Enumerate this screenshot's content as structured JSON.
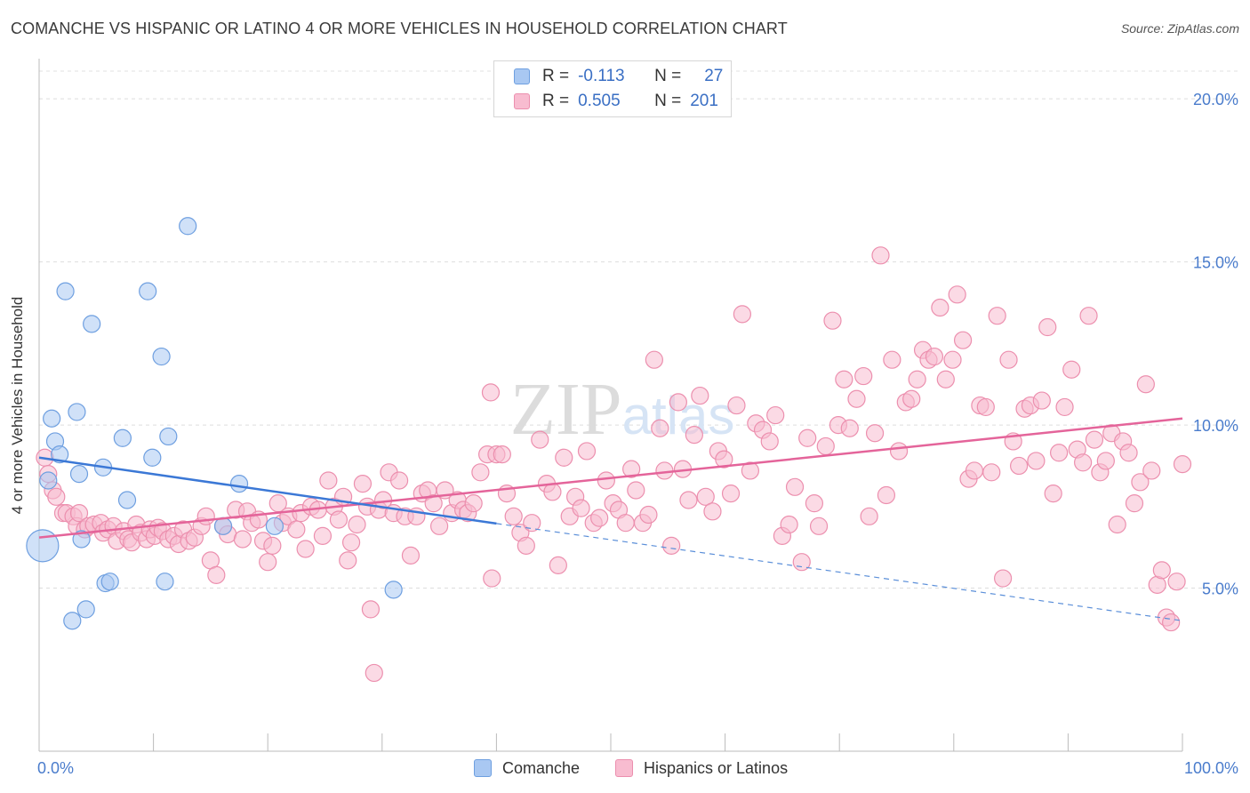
{
  "title": "COMANCHE VS HISPANIC OR LATINO 4 OR MORE VEHICLES IN HOUSEHOLD CORRELATION CHART",
  "source": "Source: ZipAtlas.com",
  "watermark": "ZIPatlas",
  "legend": {
    "rows": [
      {
        "r_label": "R =",
        "r_value": "-0.113",
        "n_label": "N =",
        "n_value": "27",
        "color": "#a9c8f2",
        "stroke": "#6e9fe0"
      },
      {
        "r_label": "R =",
        "r_value": "0.505",
        "n_label": "N =",
        "n_value": "201",
        "color": "#f8bcd0",
        "stroke": "#ec8fae"
      }
    ]
  },
  "bottom_legend": [
    {
      "label": "Comanche",
      "color": "#a9c8f2",
      "stroke": "#6e9fe0"
    },
    {
      "label": "Hispanics or Latinos",
      "color": "#f8bcd0",
      "stroke": "#ec8fae"
    }
  ],
  "chart_data": {
    "type": "scatter",
    "title": "COMANCHE VS HISPANIC OR LATINO 4 OR MORE VEHICLES IN HOUSEHOLD CORRELATION CHART",
    "xlabel": "",
    "ylabel": "4 or more Vehicles in Household",
    "xlim": [
      0,
      100
    ],
    "ylim": [
      0,
      20
    ],
    "x_tick_labels": [
      "0.0%",
      "100.0%"
    ],
    "y_ticks": [
      5,
      10,
      15,
      20
    ],
    "y_tick_labels": [
      "5.0%",
      "10.0%",
      "15.0%",
      "20.0%"
    ],
    "grid": true,
    "legend_position": "top-center",
    "series": [
      {
        "name": "Comanche",
        "color": "#a9c8f2",
        "stroke": "#6e9fe0",
        "trend": {
          "x": [
            0,
            40
          ],
          "y": [
            9.0,
            6.98
          ],
          "color": "#3b78d6"
        },
        "trend_extension": {
          "x": [
            40,
            100
          ],
          "y": [
            6.98,
            4.0
          ],
          "color": "#5b8fd9",
          "dashed": true
        },
        "points": [
          [
            0.3,
            6.3,
            "big"
          ],
          [
            0.8,
            8.3
          ],
          [
            1.1,
            10.2
          ],
          [
            1.4,
            9.5
          ],
          [
            1.8,
            9.1
          ],
          [
            2.3,
            14.1
          ],
          [
            2.9,
            4.0
          ],
          [
            3.3,
            10.4
          ],
          [
            3.5,
            8.5
          ],
          [
            3.7,
            6.5
          ],
          [
            4.1,
            4.35
          ],
          [
            4.6,
            13.1
          ],
          [
            5.6,
            8.7
          ],
          [
            5.8,
            5.15
          ],
          [
            6.2,
            5.2
          ],
          [
            7.3,
            9.6
          ],
          [
            7.7,
            7.7
          ],
          [
            9.5,
            14.1
          ],
          [
            9.9,
            9.0
          ],
          [
            10.7,
            12.1
          ],
          [
            11.0,
            5.2
          ],
          [
            11.3,
            9.65
          ],
          [
            13.0,
            16.1
          ],
          [
            16.1,
            6.9
          ],
          [
            17.5,
            8.2
          ],
          [
            20.6,
            6.9
          ],
          [
            31.0,
            4.95
          ]
        ]
      },
      {
        "name": "Hispanics or Latinos",
        "color": "#f8bcd0",
        "stroke": "#ec8fae",
        "trend": {
          "x": [
            0,
            100
          ],
          "y": [
            6.55,
            10.2
          ],
          "color": "#e4649a"
        },
        "points": [
          [
            0.5,
            9.0
          ],
          [
            0.8,
            8.5
          ],
          [
            1.2,
            8.0
          ],
          [
            1.5,
            7.8
          ],
          [
            2.1,
            7.3
          ],
          [
            2.4,
            7.3
          ],
          [
            3.0,
            7.2
          ],
          [
            3.3,
            6.9
          ],
          [
            3.5,
            7.3
          ],
          [
            4.0,
            6.8
          ],
          [
            4.3,
            6.9
          ],
          [
            4.8,
            6.95
          ],
          [
            5.4,
            7.0
          ],
          [
            5.6,
            6.7
          ],
          [
            6.0,
            6.8
          ],
          [
            6.5,
            6.9
          ],
          [
            6.8,
            6.45
          ],
          [
            7.4,
            6.75
          ],
          [
            7.8,
            6.5
          ],
          [
            8.1,
            6.4
          ],
          [
            8.5,
            6.95
          ],
          [
            8.9,
            6.7
          ],
          [
            9.4,
            6.5
          ],
          [
            9.7,
            6.8
          ],
          [
            10.1,
            6.6
          ],
          [
            10.4,
            6.85
          ],
          [
            10.8,
            6.75
          ],
          [
            11.3,
            6.5
          ],
          [
            11.8,
            6.6
          ],
          [
            12.2,
            6.35
          ],
          [
            12.6,
            6.8
          ],
          [
            13.1,
            6.45
          ],
          [
            13.6,
            6.55
          ],
          [
            14.2,
            6.9
          ],
          [
            14.6,
            7.2
          ],
          [
            15.0,
            5.85
          ],
          [
            15.5,
            5.4
          ],
          [
            16.1,
            6.9
          ],
          [
            16.5,
            6.65
          ],
          [
            17.2,
            7.4
          ],
          [
            17.8,
            6.5
          ],
          [
            18.2,
            7.35
          ],
          [
            18.6,
            7.0
          ],
          [
            19.2,
            7.1
          ],
          [
            19.6,
            6.45
          ],
          [
            20.0,
            5.8
          ],
          [
            20.4,
            6.3
          ],
          [
            20.9,
            7.6
          ],
          [
            21.3,
            7.0
          ],
          [
            21.8,
            7.2
          ],
          [
            22.5,
            6.8
          ],
          [
            22.9,
            7.3
          ],
          [
            23.3,
            6.2
          ],
          [
            23.8,
            7.5
          ],
          [
            24.4,
            7.4
          ],
          [
            24.8,
            6.6
          ],
          [
            25.3,
            8.3
          ],
          [
            25.8,
            7.5
          ],
          [
            26.2,
            7.1
          ],
          [
            26.6,
            7.8
          ],
          [
            27.0,
            5.85
          ],
          [
            27.3,
            6.4
          ],
          [
            27.8,
            6.95
          ],
          [
            28.3,
            8.2
          ],
          [
            28.7,
            7.5
          ],
          [
            29.0,
            4.35
          ],
          [
            29.3,
            2.4
          ],
          [
            29.7,
            7.4
          ],
          [
            30.1,
            7.7
          ],
          [
            30.6,
            8.55
          ],
          [
            31.0,
            7.3
          ],
          [
            31.5,
            8.3
          ],
          [
            32.0,
            7.2
          ],
          [
            32.5,
            6.0
          ],
          [
            33.0,
            7.2
          ],
          [
            33.5,
            7.9
          ],
          [
            34.0,
            8.0
          ],
          [
            34.5,
            7.6
          ],
          [
            35.0,
            6.9
          ],
          [
            35.5,
            8.0
          ],
          [
            36.1,
            7.3
          ],
          [
            36.6,
            7.7
          ],
          [
            37.1,
            7.4
          ],
          [
            37.5,
            7.3
          ],
          [
            38.0,
            7.6
          ],
          [
            38.6,
            8.55
          ],
          [
            39.2,
            9.1
          ],
          [
            39.5,
            11.0
          ],
          [
            40.0,
            9.1
          ],
          [
            40.5,
            9.1
          ],
          [
            40.9,
            7.9
          ],
          [
            41.5,
            7.2
          ],
          [
            42.1,
            6.7
          ],
          [
            42.6,
            6.3
          ],
          [
            43.1,
            7.0
          ],
          [
            43.8,
            9.55
          ],
          [
            44.4,
            8.2
          ],
          [
            44.9,
            7.95
          ],
          [
            45.4,
            5.7
          ],
          [
            45.9,
            9.0
          ],
          [
            46.4,
            7.2
          ],
          [
            46.9,
            7.8
          ],
          [
            47.4,
            7.45
          ],
          [
            47.9,
            9.2
          ],
          [
            48.5,
            7.0
          ],
          [
            49.0,
            7.15
          ],
          [
            49.6,
            8.3
          ],
          [
            50.2,
            7.6
          ],
          [
            50.7,
            7.4
          ],
          [
            51.3,
            7.0
          ],
          [
            51.8,
            8.65
          ],
          [
            52.2,
            8.0
          ],
          [
            52.8,
            7.0
          ],
          [
            53.3,
            7.25
          ],
          [
            53.8,
            12.0
          ],
          [
            54.3,
            9.9
          ],
          [
            54.7,
            8.6
          ],
          [
            55.3,
            6.3
          ],
          [
            55.9,
            10.7
          ],
          [
            56.3,
            8.65
          ],
          [
            56.8,
            7.7
          ],
          [
            57.3,
            9.7
          ],
          [
            57.8,
            10.9
          ],
          [
            58.3,
            7.8
          ],
          [
            58.9,
            7.35
          ],
          [
            59.4,
            9.2
          ],
          [
            59.9,
            8.95
          ],
          [
            60.5,
            7.9
          ],
          [
            61.0,
            10.6
          ],
          [
            61.5,
            13.4
          ],
          [
            62.2,
            8.6
          ],
          [
            62.7,
            10.05
          ],
          [
            63.3,
            9.85
          ],
          [
            63.9,
            9.5
          ],
          [
            64.4,
            10.3
          ],
          [
            65.0,
            6.6
          ],
          [
            65.6,
            6.95
          ],
          [
            66.1,
            8.1
          ],
          [
            66.7,
            5.8
          ],
          [
            67.2,
            9.6
          ],
          [
            67.8,
            7.6
          ],
          [
            68.2,
            6.9
          ],
          [
            68.8,
            9.35
          ],
          [
            69.4,
            13.2
          ],
          [
            69.9,
            10.0
          ],
          [
            70.4,
            11.4
          ],
          [
            70.9,
            9.9
          ],
          [
            71.5,
            10.8
          ],
          [
            72.1,
            11.5
          ],
          [
            72.6,
            7.2
          ],
          [
            73.1,
            9.75
          ],
          [
            73.6,
            15.2
          ],
          [
            74.1,
            7.85
          ],
          [
            74.6,
            12.0
          ],
          [
            75.2,
            9.2
          ],
          [
            75.8,
            10.7
          ],
          [
            76.3,
            10.8
          ],
          [
            76.8,
            11.4
          ],
          [
            77.3,
            12.3
          ],
          [
            77.8,
            12.0
          ],
          [
            78.3,
            12.1
          ],
          [
            78.8,
            13.6
          ],
          [
            79.3,
            11.4
          ],
          [
            79.9,
            12.0
          ],
          [
            80.3,
            14.0
          ],
          [
            80.8,
            12.6
          ],
          [
            81.3,
            8.35
          ],
          [
            81.8,
            8.6
          ],
          [
            82.3,
            10.6
          ],
          [
            82.8,
            10.55
          ],
          [
            83.3,
            8.55
          ],
          [
            83.8,
            13.35
          ],
          [
            84.3,
            5.3
          ],
          [
            84.8,
            12.0
          ],
          [
            85.2,
            9.5
          ],
          [
            85.7,
            8.75
          ],
          [
            86.2,
            10.5
          ],
          [
            86.7,
            10.6
          ],
          [
            87.2,
            8.9
          ],
          [
            87.7,
            10.75
          ],
          [
            88.2,
            13.0
          ],
          [
            88.7,
            7.9
          ],
          [
            89.2,
            9.15
          ],
          [
            89.7,
            10.55
          ],
          [
            90.3,
            11.7
          ],
          [
            90.8,
            9.25
          ],
          [
            91.3,
            8.85
          ],
          [
            91.8,
            13.35
          ],
          [
            92.3,
            9.55
          ],
          [
            92.8,
            8.55
          ],
          [
            93.3,
            8.9
          ],
          [
            93.8,
            9.75
          ],
          [
            94.3,
            6.95
          ],
          [
            94.8,
            9.5
          ],
          [
            95.3,
            9.15
          ],
          [
            95.8,
            7.6
          ],
          [
            96.3,
            8.25
          ],
          [
            96.8,
            11.25
          ],
          [
            97.3,
            8.6
          ],
          [
            97.8,
            5.1
          ],
          [
            98.2,
            5.55
          ],
          [
            98.6,
            4.1
          ],
          [
            99.0,
            3.95
          ],
          [
            99.5,
            5.2
          ],
          [
            100.0,
            8.8
          ],
          [
            39.6,
            5.3
          ]
        ]
      }
    ]
  }
}
